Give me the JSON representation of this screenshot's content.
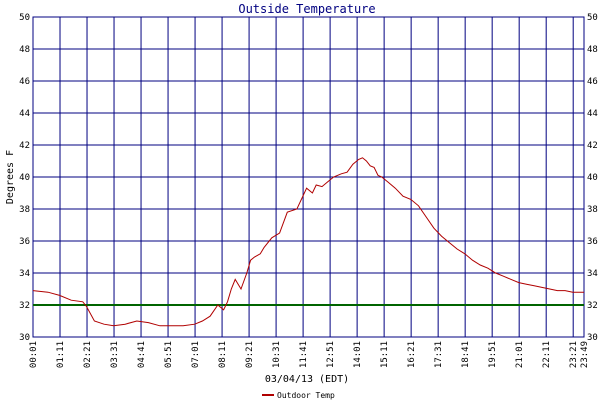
{
  "chart_data": {
    "type": "line",
    "title": "Outside Temperature",
    "xlabel": "03/04/13 (EDT)",
    "ylabel": "Degrees F",
    "ylim": [
      30,
      50
    ],
    "y_ticks": [
      30,
      32,
      34,
      36,
      38,
      40,
      42,
      44,
      46,
      48,
      50
    ],
    "x_ticks": [
      "00:01",
      "01:11",
      "02:21",
      "03:31",
      "04:41",
      "05:51",
      "07:01",
      "08:11",
      "09:21",
      "10:31",
      "11:41",
      "12:51",
      "14:01",
      "15:11",
      "16:21",
      "17:31",
      "18:41",
      "19:51",
      "21:01",
      "22:11",
      "23:21",
      "23:49"
    ],
    "grid": true,
    "reference_line": {
      "value": 32,
      "color": "#006400"
    },
    "colors": {
      "grid": "#000080",
      "series": "#b00000",
      "title": "#000080"
    },
    "legend": {
      "position": "bottom-center"
    },
    "series": [
      {
        "name": "Outdoor Temp",
        "x_minutes": [
          1,
          40,
          70,
          100,
          130,
          140,
          160,
          185,
          210,
          240,
          270,
          300,
          330,
          360,
          390,
          420,
          440,
          460,
          480,
          495,
          505,
          515,
          525,
          540,
          555,
          565,
          575,
          590,
          600,
          620,
          640,
          660,
          685,
          710,
          725,
          735,
          750,
          765,
          780,
          800,
          815,
          830,
          845,
          855,
          865,
          875,
          885,
          895,
          905,
          920,
          940,
          960,
          980,
          1000,
          1020,
          1040,
          1060,
          1080,
          1100,
          1120,
          1140,
          1160,
          1180,
          1200,
          1220,
          1240,
          1260,
          1280,
          1300,
          1320,
          1340,
          1360,
          1380,
          1400,
          1420,
          1429
        ],
        "values": [
          32.9,
          32.8,
          32.6,
          32.3,
          32.2,
          31.9,
          31.0,
          30.8,
          30.7,
          30.8,
          31.0,
          30.9,
          30.7,
          30.7,
          30.7,
          30.8,
          31.0,
          31.3,
          32.0,
          31.7,
          32.2,
          33.0,
          33.6,
          33.0,
          34.0,
          34.8,
          35.0,
          35.2,
          35.6,
          36.2,
          36.5,
          37.8,
          38.0,
          39.3,
          39.0,
          39.5,
          39.4,
          39.7,
          40.0,
          40.2,
          40.3,
          40.8,
          41.1,
          41.2,
          41.0,
          40.7,
          40.6,
          40.1,
          40.0,
          39.7,
          39.3,
          38.8,
          38.6,
          38.2,
          37.5,
          36.8,
          36.3,
          35.9,
          35.5,
          35.2,
          34.8,
          34.5,
          34.3,
          34.0,
          33.8,
          33.6,
          33.4,
          33.3,
          33.2,
          33.1,
          33.0,
          32.9,
          32.9,
          32.8,
          32.8,
          32.8
        ]
      }
    ]
  }
}
